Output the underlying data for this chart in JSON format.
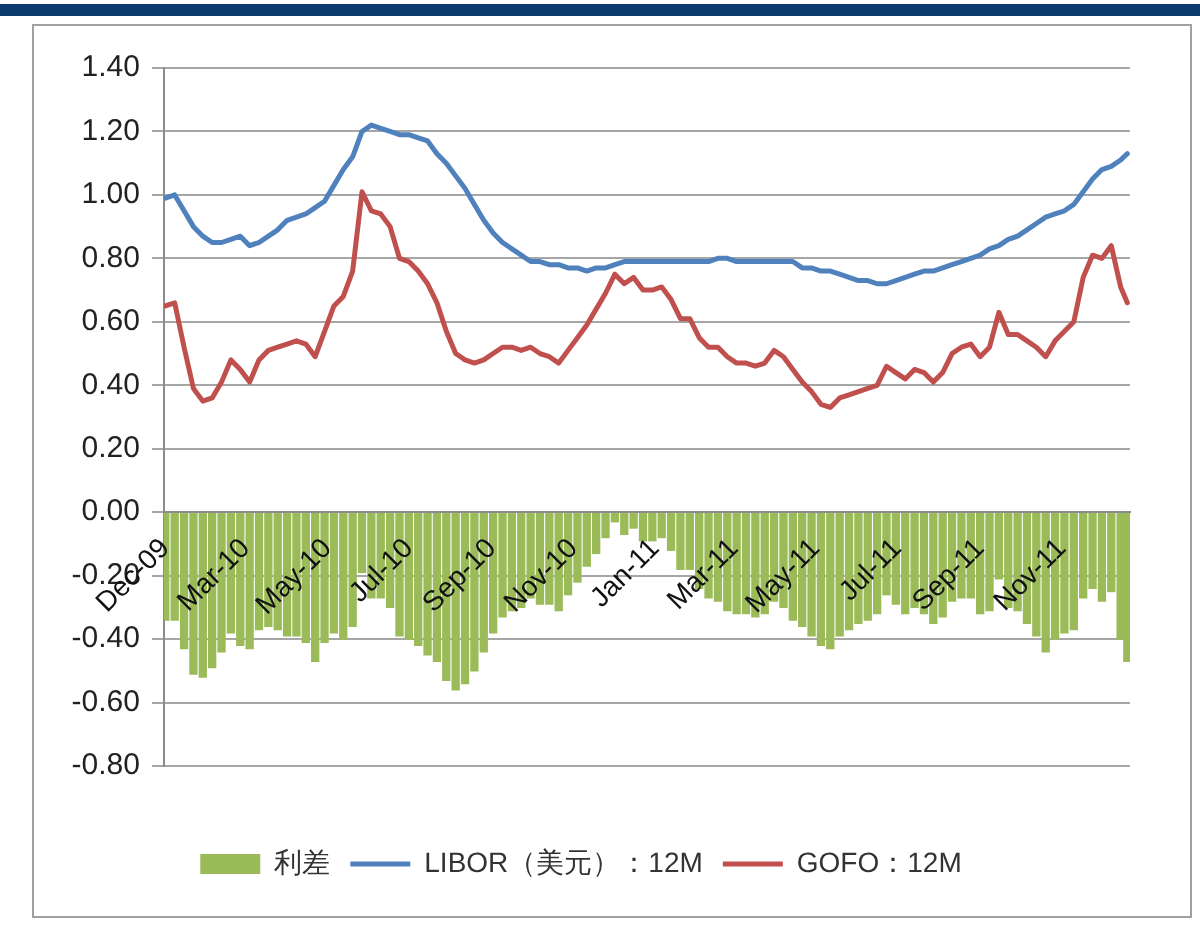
{
  "chart_data": {
    "type": "bar",
    "x": [
      "2009-12-31",
      "2010-01-07",
      "2010-01-14",
      "2010-01-21",
      "2010-01-28",
      "2010-02-04",
      "2010-02-11",
      "2010-02-18",
      "2010-02-25",
      "2010-03-04",
      "2010-03-11",
      "2010-03-18",
      "2010-03-25",
      "2010-04-01",
      "2010-04-08",
      "2010-04-15",
      "2010-04-22",
      "2010-04-29",
      "2010-05-06",
      "2010-05-13",
      "2010-05-20",
      "2010-05-27",
      "2010-06-03",
      "2010-06-10",
      "2010-06-17",
      "2010-06-24",
      "2010-07-01",
      "2010-07-08",
      "2010-07-15",
      "2010-07-22",
      "2010-07-29",
      "2010-08-05",
      "2010-08-12",
      "2010-08-19",
      "2010-08-26",
      "2010-09-02",
      "2010-09-09",
      "2010-09-16",
      "2010-09-23",
      "2010-09-30",
      "2010-10-07",
      "2010-10-14",
      "2010-10-21",
      "2010-10-28",
      "2010-11-04",
      "2010-11-11",
      "2010-11-18",
      "2010-11-25",
      "2010-12-02",
      "2010-12-09",
      "2010-12-16",
      "2010-12-23",
      "2010-12-30",
      "2011-01-06",
      "2011-01-13",
      "2011-01-20",
      "2011-01-27",
      "2011-02-03",
      "2011-02-10",
      "2011-02-17",
      "2011-02-24",
      "2011-03-03",
      "2011-03-10",
      "2011-03-17",
      "2011-03-24",
      "2011-03-31",
      "2011-04-07",
      "2011-04-14",
      "2011-04-21",
      "2011-04-28",
      "2011-05-05",
      "2011-05-12",
      "2011-05-19",
      "2011-05-26",
      "2011-06-02",
      "2011-06-09",
      "2011-06-16",
      "2011-06-23",
      "2011-06-30",
      "2011-07-07",
      "2011-07-14",
      "2011-07-21",
      "2011-07-28",
      "2011-08-04",
      "2011-08-11",
      "2011-08-18",
      "2011-08-25",
      "2011-09-01",
      "2011-09-08",
      "2011-09-15",
      "2011-09-22",
      "2011-09-29",
      "2011-10-06",
      "2011-10-13",
      "2011-10-20",
      "2011-10-27",
      "2011-11-03",
      "2011-11-10",
      "2011-11-17",
      "2011-11-24",
      "2011-12-01",
      "2011-12-08",
      "2011-12-15",
      "2011-12-20"
    ],
    "series": [
      {
        "name": "利差",
        "color": "#9bbb59",
        "values": [
          -0.34,
          -0.34,
          -0.43,
          -0.51,
          -0.52,
          -0.49,
          -0.44,
          -0.38,
          -0.42,
          -0.43,
          -0.37,
          -0.36,
          -0.37,
          -0.39,
          -0.39,
          -0.41,
          -0.47,
          -0.41,
          -0.38,
          -0.4,
          -0.36,
          -0.19,
          -0.27,
          -0.27,
          -0.3,
          -0.39,
          -0.4,
          -0.42,
          -0.45,
          -0.47,
          -0.53,
          -0.56,
          -0.54,
          -0.5,
          -0.44,
          -0.38,
          -0.33,
          -0.31,
          -0.3,
          -0.27,
          -0.29,
          -0.29,
          -0.31,
          -0.26,
          -0.22,
          -0.17,
          -0.13,
          -0.08,
          -0.03,
          -0.07,
          -0.05,
          -0.09,
          -0.09,
          -0.08,
          -0.12,
          -0.18,
          -0.18,
          -0.24,
          -0.27,
          -0.28,
          -0.31,
          -0.32,
          -0.32,
          -0.33,
          -0.32,
          -0.28,
          -0.3,
          -0.34,
          -0.36,
          -0.39,
          -0.42,
          -0.43,
          -0.39,
          -0.37,
          -0.35,
          -0.34,
          -0.32,
          -0.26,
          -0.29,
          -0.32,
          -0.3,
          -0.32,
          -0.35,
          -0.33,
          -0.28,
          -0.27,
          -0.27,
          -0.32,
          -0.31,
          -0.21,
          -0.3,
          -0.31,
          -0.35,
          -0.39,
          -0.44,
          -0.4,
          -0.38,
          -0.37,
          -0.27,
          -0.24,
          -0.28,
          -0.25,
          -0.4,
          -0.47
        ]
      },
      {
        "name": "LIBOR（美元）：12M",
        "type": "line",
        "color": "#4f81bd",
        "values": [
          0.99,
          1.0,
          0.95,
          0.9,
          0.87,
          0.85,
          0.85,
          0.86,
          0.87,
          0.84,
          0.85,
          0.87,
          0.89,
          0.92,
          0.93,
          0.94,
          0.96,
          0.98,
          1.03,
          1.08,
          1.12,
          1.2,
          1.22,
          1.21,
          1.2,
          1.19,
          1.19,
          1.18,
          1.17,
          1.13,
          1.1,
          1.06,
          1.02,
          0.97,
          0.92,
          0.88,
          0.85,
          0.83,
          0.81,
          0.79,
          0.79,
          0.78,
          0.78,
          0.77,
          0.77,
          0.76,
          0.77,
          0.77,
          0.78,
          0.79,
          0.79,
          0.79,
          0.79,
          0.79,
          0.79,
          0.79,
          0.79,
          0.79,
          0.79,
          0.8,
          0.8,
          0.79,
          0.79,
          0.79,
          0.79,
          0.79,
          0.79,
          0.79,
          0.77,
          0.77,
          0.76,
          0.76,
          0.75,
          0.74,
          0.73,
          0.73,
          0.72,
          0.72,
          0.73,
          0.74,
          0.75,
          0.76,
          0.76,
          0.77,
          0.78,
          0.79,
          0.8,
          0.81,
          0.83,
          0.84,
          0.86,
          0.87,
          0.89,
          0.91,
          0.93,
          0.94,
          0.95,
          0.97,
          1.01,
          1.05,
          1.08,
          1.09,
          1.11,
          1.13
        ]
      },
      {
        "name": "GOFO：12M",
        "type": "line",
        "color": "#c0504d",
        "values": [
          0.65,
          0.66,
          0.52,
          0.39,
          0.35,
          0.36,
          0.41,
          0.48,
          0.45,
          0.41,
          0.48,
          0.51,
          0.52,
          0.53,
          0.54,
          0.53,
          0.49,
          0.57,
          0.65,
          0.68,
          0.76,
          1.01,
          0.95,
          0.94,
          0.9,
          0.8,
          0.79,
          0.76,
          0.72,
          0.66,
          0.57,
          0.5,
          0.48,
          0.47,
          0.48,
          0.5,
          0.52,
          0.52,
          0.51,
          0.52,
          0.5,
          0.49,
          0.47,
          0.51,
          0.55,
          0.59,
          0.64,
          0.69,
          0.75,
          0.72,
          0.74,
          0.7,
          0.7,
          0.71,
          0.67,
          0.61,
          0.61,
          0.55,
          0.52,
          0.52,
          0.49,
          0.47,
          0.47,
          0.46,
          0.47,
          0.51,
          0.49,
          0.45,
          0.41,
          0.38,
          0.34,
          0.33,
          0.36,
          0.37,
          0.38,
          0.39,
          0.4,
          0.46,
          0.44,
          0.42,
          0.45,
          0.44,
          0.41,
          0.44,
          0.5,
          0.52,
          0.53,
          0.49,
          0.52,
          0.63,
          0.56,
          0.56,
          0.54,
          0.52,
          0.49,
          0.54,
          0.57,
          0.6,
          0.74,
          0.81,
          0.8,
          0.84,
          0.71,
          0.66
        ]
      }
    ],
    "xlim": [
      "2009-12-30",
      "2011-12-22"
    ],
    "xticks": [
      {
        "value": "2009-12-31",
        "label": "Dec-09"
      },
      {
        "value": "2010-03-01",
        "label": "Mar-10"
      },
      {
        "value": "2010-05-01",
        "label": "May-10"
      },
      {
        "value": "2010-07-01",
        "label": "Jul-10"
      },
      {
        "value": "2010-09-01",
        "label": "Sep-10"
      },
      {
        "value": "2010-11-01",
        "label": "Nov-10"
      },
      {
        "value": "2011-01-01",
        "label": "Jan-11"
      },
      {
        "value": "2011-03-01",
        "label": "Mar-11"
      },
      {
        "value": "2011-05-01",
        "label": "May-11"
      },
      {
        "value": "2011-07-01",
        "label": "Jul-11"
      },
      {
        "value": "2011-09-01",
        "label": "Sep-11"
      },
      {
        "value": "2011-11-01",
        "label": "Nov-11"
      }
    ],
    "ylim": [
      -0.8,
      1.4
    ],
    "yticks": [
      {
        "value": -0.8,
        "label": "-0.80"
      },
      {
        "value": -0.6,
        "label": "-0.60"
      },
      {
        "value": -0.4,
        "label": "-0.40"
      },
      {
        "value": -0.2,
        "label": "-0.20"
      },
      {
        "value": 0,
        "label": "0.00"
      },
      {
        "value": 0.2,
        "label": "0.20"
      },
      {
        "value": 0.4,
        "label": "0.40"
      },
      {
        "value": 0.6,
        "label": "0.60"
      },
      {
        "value": 0.8,
        "label": "0.80"
      },
      {
        "value": 1.0,
        "label": "1.00"
      },
      {
        "value": 1.2,
        "label": "1.20"
      },
      {
        "value": 1.4,
        "label": "1.40"
      }
    ],
    "grid": "y",
    "legend": "bottom",
    "marker": "none"
  }
}
